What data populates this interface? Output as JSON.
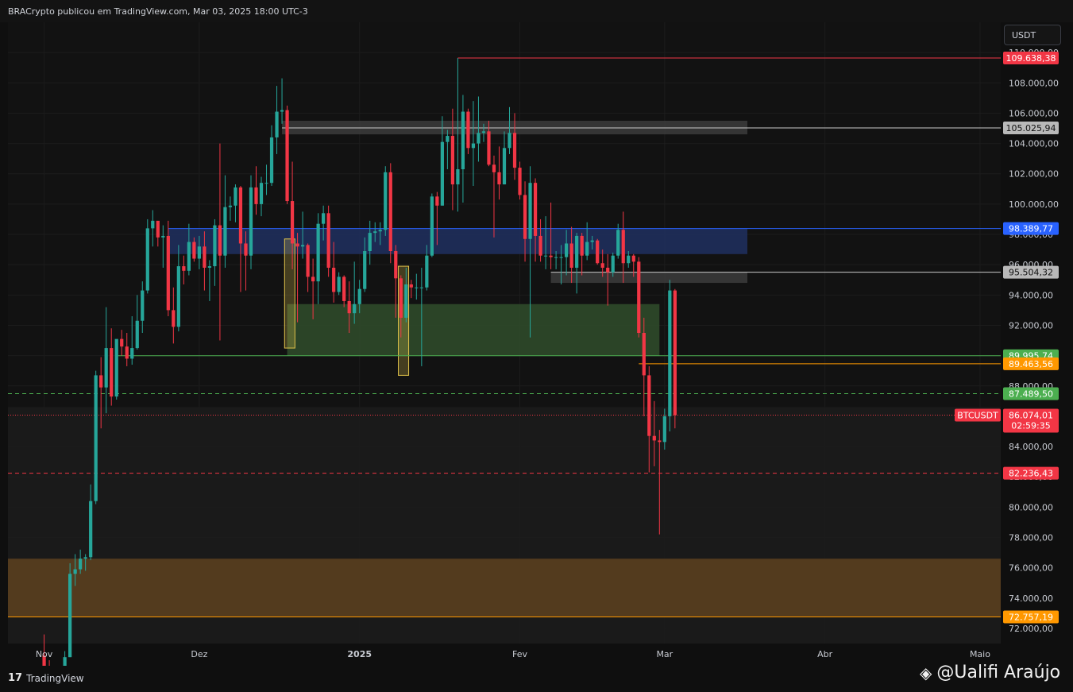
{
  "header": {
    "publish_line": "BRACrypto publicou em TradingView.com, Mar 03, 2025 18:00 UTC-3"
  },
  "currency_selector": "USDT",
  "footer": {
    "brand": "TradingView",
    "brand_logo": "tradingview-logo-icon",
    "watermark": "@Ualifi Araújo",
    "watermark_icon": "binance-logo-icon"
  },
  "chart_data": {
    "type": "candlestick",
    "symbol": "BTCUSDT",
    "quote": "USDT",
    "y_axis": {
      "side": "right",
      "ticks": [
        72000,
        74000,
        76000,
        78000,
        80000,
        82000,
        84000,
        86000,
        88000,
        90000,
        92000,
        94000,
        96000,
        98000,
        100000,
        102000,
        104000,
        106000,
        108000,
        110000
      ],
      "tick_labels": [
        "72.000,00",
        "74.000,00",
        "76.000,00",
        "78.000,00",
        "80.000,00",
        "82.000,00",
        "84.000,00",
        "86.000,00",
        "88.000,00",
        "90.000,00",
        "92.000,00",
        "94.000,00",
        "96.000,00",
        "98.000,00",
        "100.000,00",
        "102.000,00",
        "104.000,00",
        "106.000,00",
        "108.000,00",
        "110.000,00"
      ],
      "range": [
        71000,
        112000
      ]
    },
    "x_axis": {
      "range": [
        "2024-10-25",
        "2025-05-05"
      ],
      "ticks": [
        {
          "date": "2024-11-01",
          "label": "Nov"
        },
        {
          "date": "2024-12-01",
          "label": "Dez"
        },
        {
          "date": "2025-01-01",
          "label": "2025"
        },
        {
          "date": "2025-02-01",
          "label": "Fev"
        },
        {
          "date": "2025-03-01",
          "label": "Mar"
        },
        {
          "date": "2025-04-01",
          "label": "Abr"
        },
        {
          "date": "2025-05-01",
          "label": "Maio"
        }
      ]
    },
    "current_price": {
      "label": "BTCUSDT",
      "value_label": "86.074,01",
      "value": 86074.01,
      "countdown": "02:59:35"
    },
    "levels": [
      {
        "value": 109638.38,
        "label": "109.638,38",
        "color": "#f23645",
        "style": "solid",
        "start": "2025-01-20"
      },
      {
        "value": 105025.94,
        "label": "105.025,94",
        "color": "#c9c9c9",
        "style": "solid",
        "start": "2024-12-17"
      },
      {
        "value": 98389.77,
        "label": "98.389,77",
        "color": "#2962ff",
        "style": "solid",
        "start": "2024-11-25"
      },
      {
        "value": 95504.32,
        "label": "95.504,32",
        "color": "#c9c9c9",
        "style": "solid",
        "start": "2025-02-07"
      },
      {
        "value": 89995.74,
        "label": "89.995,74",
        "color": "#4caf50",
        "style": "solid",
        "start": "2024-11-15"
      },
      {
        "value": 89463.56,
        "label": "89.463,56",
        "color": "#ff9800",
        "style": "solid",
        "start": "2025-02-24"
      },
      {
        "value": 87489.5,
        "label": "87.489,50",
        "color": "#4caf50",
        "style": "dashed",
        "start": "2024-10-25"
      },
      {
        "value": 82236.43,
        "label": "82.236,43",
        "color": "#f23645",
        "style": "dashed",
        "start": "2024-10-25"
      },
      {
        "value": 72757.19,
        "label": "72.757,19",
        "color": "#ff9800",
        "style": "solid",
        "start": "2024-10-25"
      }
    ],
    "zones": [
      {
        "from": "2024-10-25",
        "to": "2025-05-05",
        "low": 72757.19,
        "high": 76600,
        "color": "#5a3f1f"
      },
      {
        "from": "2024-11-25",
        "to": "2025-03-17",
        "low": 96700,
        "high": 98389.77,
        "color": "#1f2f5c"
      },
      {
        "from": "2024-12-17",
        "to": "2025-03-17",
        "low": 104600,
        "high": 105500,
        "color": "#3a3a3a"
      },
      {
        "from": "2025-02-07",
        "to": "2025-03-17",
        "low": 94800,
        "high": 95504.32,
        "color": "#3a3a3a"
      },
      {
        "from": "2024-12-18",
        "to": "2025-02-28",
        "low": 89995.74,
        "high": 93400,
        "color": "#2f4a2a"
      }
    ],
    "candles": [
      {
        "d": "2024-11-01",
        "o": 70200,
        "h": 71600,
        "l": 69000,
        "c": 69500
      },
      {
        "d": "2024-11-02",
        "o": 69500,
        "h": 69900,
        "l": 68700,
        "c": 69300
      },
      {
        "d": "2024-11-04",
        "o": 68600,
        "h": 69000,
        "l": 66800,
        "c": 67800
      },
      {
        "d": "2024-11-05",
        "o": 67800,
        "h": 70500,
        "l": 67500,
        "c": 70100
      },
      {
        "d": "2024-11-06",
        "o": 70100,
        "h": 76300,
        "l": 70100,
        "c": 75600
      },
      {
        "d": "2024-11-07",
        "o": 75600,
        "h": 76900,
        "l": 74800,
        "c": 75900
      },
      {
        "d": "2024-11-08",
        "o": 75900,
        "h": 77200,
        "l": 75600,
        "c": 76600
      },
      {
        "d": "2024-11-09",
        "o": 76600,
        "h": 76900,
        "l": 75800,
        "c": 76700
      },
      {
        "d": "2024-11-10",
        "o": 76700,
        "h": 81500,
        "l": 76500,
        "c": 80400
      },
      {
        "d": "2024-11-11",
        "o": 80400,
        "h": 89000,
        "l": 80200,
        "c": 88700
      },
      {
        "d": "2024-11-12",
        "o": 88700,
        "h": 89900,
        "l": 85200,
        "c": 87900
      },
      {
        "d": "2024-11-13",
        "o": 87900,
        "h": 93200,
        "l": 86200,
        "c": 90500
      },
      {
        "d": "2024-11-14",
        "o": 90500,
        "h": 91800,
        "l": 86700,
        "c": 87300
      },
      {
        "d": "2024-11-15",
        "o": 87300,
        "h": 91000,
        "l": 87100,
        "c": 91100
      },
      {
        "d": "2024-11-16",
        "o": 91100,
        "h": 91700,
        "l": 90000,
        "c": 90600
      },
      {
        "d": "2024-11-17",
        "o": 90600,
        "h": 91500,
        "l": 89300,
        "c": 89800
      },
      {
        "d": "2024-11-18",
        "o": 89800,
        "h": 92600,
        "l": 89400,
        "c": 90500
      },
      {
        "d": "2024-11-19",
        "o": 90500,
        "h": 94000,
        "l": 90400,
        "c": 92300
      },
      {
        "d": "2024-11-20",
        "o": 92300,
        "h": 94900,
        "l": 91500,
        "c": 94300
      },
      {
        "d": "2024-11-21",
        "o": 94300,
        "h": 99000,
        "l": 94100,
        "c": 98400
      },
      {
        "d": "2024-11-22",
        "o": 98400,
        "h": 99600,
        "l": 97200,
        "c": 98900
      },
      {
        "d": "2024-11-23",
        "o": 98900,
        "h": 98700,
        "l": 97200,
        "c": 97800
      },
      {
        "d": "2024-11-24",
        "o": 97800,
        "h": 98600,
        "l": 95800,
        "c": 97900
      },
      {
        "d": "2024-11-25",
        "o": 97900,
        "h": 98900,
        "l": 92600,
        "c": 93000
      },
      {
        "d": "2024-11-26",
        "o": 93000,
        "h": 94500,
        "l": 90800,
        "c": 91900
      },
      {
        "d": "2024-11-27",
        "o": 91900,
        "h": 97300,
        "l": 91600,
        "c": 95900
      },
      {
        "d": "2024-11-28",
        "o": 95900,
        "h": 96600,
        "l": 94700,
        "c": 95600
      },
      {
        "d": "2024-11-29",
        "o": 95600,
        "h": 98700,
        "l": 95300,
        "c": 97500
      },
      {
        "d": "2024-11-30",
        "o": 97500,
        "h": 97800,
        "l": 96200,
        "c": 96400
      },
      {
        "d": "2024-12-01",
        "o": 96400,
        "h": 97900,
        "l": 95700,
        "c": 97200
      },
      {
        "d": "2024-12-02",
        "o": 97200,
        "h": 98200,
        "l": 94300,
        "c": 95800
      },
      {
        "d": "2024-12-03",
        "o": 95800,
        "h": 96300,
        "l": 93600,
        "c": 95900
      },
      {
        "d": "2024-12-04",
        "o": 95900,
        "h": 99000,
        "l": 94600,
        "c": 98600
      },
      {
        "d": "2024-12-05",
        "o": 98600,
        "h": 104000,
        "l": 91000,
        "c": 96600
      },
      {
        "d": "2024-12-06",
        "o": 96600,
        "h": 101900,
        "l": 95800,
        "c": 99800
      },
      {
        "d": "2024-12-07",
        "o": 99800,
        "h": 100500,
        "l": 98900,
        "c": 99900
      },
      {
        "d": "2024-12-08",
        "o": 99900,
        "h": 101300,
        "l": 98800,
        "c": 101100
      },
      {
        "d": "2024-12-09",
        "o": 101100,
        "h": 101200,
        "l": 94200,
        "c": 97400
      },
      {
        "d": "2024-12-10",
        "o": 97400,
        "h": 98200,
        "l": 94300,
        "c": 96600
      },
      {
        "d": "2024-12-11",
        "o": 96600,
        "h": 101900,
        "l": 95700,
        "c": 101100
      },
      {
        "d": "2024-12-12",
        "o": 101100,
        "h": 102500,
        "l": 99300,
        "c": 100000
      },
      {
        "d": "2024-12-13",
        "o": 100000,
        "h": 101800,
        "l": 99200,
        "c": 101400
      },
      {
        "d": "2024-12-14",
        "o": 101400,
        "h": 102600,
        "l": 100600,
        "c": 101400
      },
      {
        "d": "2024-12-15",
        "o": 101400,
        "h": 105200,
        "l": 101200,
        "c": 104400
      },
      {
        "d": "2024-12-16",
        "o": 104400,
        "h": 107800,
        "l": 103300,
        "c": 106100
      },
      {
        "d": "2024-12-17",
        "o": 106100,
        "h": 108300,
        "l": 105300,
        "c": 106200
      },
      {
        "d": "2024-12-18",
        "o": 106200,
        "h": 106500,
        "l": 100000,
        "c": 100200
      },
      {
        "d": "2024-12-19",
        "o": 100200,
        "h": 102800,
        "l": 95700,
        "c": 97400
      },
      {
        "d": "2024-12-20",
        "o": 97400,
        "h": 98100,
        "l": 92200,
        "c": 97200
      },
      {
        "d": "2024-12-21",
        "o": 97200,
        "h": 99500,
        "l": 96400,
        "c": 97300
      },
      {
        "d": "2024-12-22",
        "o": 97300,
        "h": 97400,
        "l": 94200,
        "c": 95200
      },
      {
        "d": "2024-12-23",
        "o": 95200,
        "h": 96400,
        "l": 92400,
        "c": 94900
      },
      {
        "d": "2024-12-24",
        "o": 94900,
        "h": 99400,
        "l": 93400,
        "c": 98700
      },
      {
        "d": "2024-12-25",
        "o": 98700,
        "h": 99900,
        "l": 97600,
        "c": 99400
      },
      {
        "d": "2024-12-26",
        "o": 99400,
        "h": 99900,
        "l": 95200,
        "c": 95800
      },
      {
        "d": "2024-12-27",
        "o": 95800,
        "h": 97500,
        "l": 93500,
        "c": 94200
      },
      {
        "d": "2024-12-28",
        "o": 94200,
        "h": 95500,
        "l": 94000,
        "c": 95200
      },
      {
        "d": "2024-12-29",
        "o": 95200,
        "h": 95300,
        "l": 93200,
        "c": 93600
      },
      {
        "d": "2024-12-30",
        "o": 93600,
        "h": 94900,
        "l": 91500,
        "c": 92800
      },
      {
        "d": "2024-12-31",
        "o": 92800,
        "h": 96200,
        "l": 92100,
        "c": 93400
      },
      {
        "d": "2025-01-01",
        "o": 93400,
        "h": 95000,
        "l": 92800,
        "c": 94400
      },
      {
        "d": "2025-01-02",
        "o": 94400,
        "h": 97800,
        "l": 94200,
        "c": 96900
      },
      {
        "d": "2025-01-03",
        "o": 96900,
        "h": 98900,
        "l": 96000,
        "c": 98100
      },
      {
        "d": "2025-01-04",
        "o": 98100,
        "h": 98800,
        "l": 97500,
        "c": 98200
      },
      {
        "d": "2025-01-05",
        "o": 98200,
        "h": 98800,
        "l": 97300,
        "c": 98300
      },
      {
        "d": "2025-01-06",
        "o": 98300,
        "h": 102500,
        "l": 97900,
        "c": 102100
      },
      {
        "d": "2025-01-07",
        "o": 102100,
        "h": 102700,
        "l": 96100,
        "c": 96900
      },
      {
        "d": "2025-01-08",
        "o": 96900,
        "h": 97300,
        "l": 92500,
        "c": 95100
      },
      {
        "d": "2025-01-09",
        "o": 95100,
        "h": 95300,
        "l": 91200,
        "c": 92500
      },
      {
        "d": "2025-01-10",
        "o": 92500,
        "h": 95800,
        "l": 92200,
        "c": 94700
      },
      {
        "d": "2025-01-11",
        "o": 94700,
        "h": 95000,
        "l": 93800,
        "c": 94500
      },
      {
        "d": "2025-01-12",
        "o": 94500,
        "h": 95400,
        "l": 93700,
        "c": 94500
      },
      {
        "d": "2025-01-13",
        "o": 94500,
        "h": 95800,
        "l": 89300,
        "c": 94500
      },
      {
        "d": "2025-01-14",
        "o": 94500,
        "h": 97300,
        "l": 94300,
        "c": 96600
      },
      {
        "d": "2025-01-15",
        "o": 96600,
        "h": 100700,
        "l": 96500,
        "c": 100500
      },
      {
        "d": "2025-01-16",
        "o": 100500,
        "h": 100800,
        "l": 97300,
        "c": 99900
      },
      {
        "d": "2025-01-17",
        "o": 99900,
        "h": 105800,
        "l": 99900,
        "c": 104100
      },
      {
        "d": "2025-01-18",
        "o": 104100,
        "h": 104900,
        "l": 102300,
        "c": 104500
      },
      {
        "d": "2025-01-19",
        "o": 104500,
        "h": 106300,
        "l": 99600,
        "c": 101300
      },
      {
        "d": "2025-01-20",
        "o": 101300,
        "h": 109638,
        "l": 99500,
        "c": 102300
      },
      {
        "d": "2025-01-21",
        "o": 102300,
        "h": 107200,
        "l": 100100,
        "c": 106100
      },
      {
        "d": "2025-01-22",
        "o": 106100,
        "h": 106300,
        "l": 103300,
        "c": 103700
      },
      {
        "d": "2025-01-23",
        "o": 103700,
        "h": 106800,
        "l": 101200,
        "c": 104000
      },
      {
        "d": "2025-01-24",
        "o": 104000,
        "h": 107100,
        "l": 102800,
        "c": 104700
      },
      {
        "d": "2025-01-25",
        "o": 104700,
        "h": 105300,
        "l": 104100,
        "c": 104800
      },
      {
        "d": "2025-01-26",
        "o": 104800,
        "h": 105500,
        "l": 102500,
        "c": 102600
      },
      {
        "d": "2025-01-27",
        "o": 102600,
        "h": 103200,
        "l": 97800,
        "c": 102100
      },
      {
        "d": "2025-01-28",
        "o": 102100,
        "h": 103800,
        "l": 100300,
        "c": 101300
      },
      {
        "d": "2025-01-29",
        "o": 101300,
        "h": 104800,
        "l": 101300,
        "c": 103700
      },
      {
        "d": "2025-01-30",
        "o": 103700,
        "h": 106400,
        "l": 103300,
        "c": 104700
      },
      {
        "d": "2025-01-31",
        "o": 104700,
        "h": 106000,
        "l": 101600,
        "c": 102400
      },
      {
        "d": "2025-02-01",
        "o": 102400,
        "h": 102800,
        "l": 100300,
        "c": 100600
      },
      {
        "d": "2025-02-02",
        "o": 100600,
        "h": 101500,
        "l": 96200,
        "c": 97700
      },
      {
        "d": "2025-02-03",
        "o": 97700,
        "h": 102500,
        "l": 91200,
        "c": 101400
      },
      {
        "d": "2025-02-04",
        "o": 101400,
        "h": 101700,
        "l": 96200,
        "c": 97900
      },
      {
        "d": "2025-02-05",
        "o": 97900,
        "h": 99000,
        "l": 96200,
        "c": 96600
      },
      {
        "d": "2025-02-06",
        "o": 96600,
        "h": 99200,
        "l": 95700,
        "c": 96600
      },
      {
        "d": "2025-02-07",
        "o": 96600,
        "h": 100100,
        "l": 95700,
        "c": 96500
      },
      {
        "d": "2025-02-08",
        "o": 96500,
        "h": 96900,
        "l": 95700,
        "c": 96500
      },
      {
        "d": "2025-02-09",
        "o": 96500,
        "h": 97300,
        "l": 94700,
        "c": 96500
      },
      {
        "d": "2025-02-10",
        "o": 96500,
        "h": 98300,
        "l": 95300,
        "c": 97400
      },
      {
        "d": "2025-02-11",
        "o": 97400,
        "h": 98500,
        "l": 94800,
        "c": 95800
      },
      {
        "d": "2025-02-12",
        "o": 95800,
        "h": 98100,
        "l": 94100,
        "c": 97900
      },
      {
        "d": "2025-02-13",
        "o": 97900,
        "h": 98100,
        "l": 95300,
        "c": 96600
      },
      {
        "d": "2025-02-14",
        "o": 96600,
        "h": 98800,
        "l": 96300,
        "c": 97500
      },
      {
        "d": "2025-02-15",
        "o": 97500,
        "h": 97900,
        "l": 97000,
        "c": 97600
      },
      {
        "d": "2025-02-16",
        "o": 97600,
        "h": 97700,
        "l": 96000,
        "c": 96100
      },
      {
        "d": "2025-02-17",
        "o": 96100,
        "h": 97000,
        "l": 95200,
        "c": 95800
      },
      {
        "d": "2025-02-18",
        "o": 95800,
        "h": 96700,
        "l": 93300,
        "c": 95500
      },
      {
        "d": "2025-02-19",
        "o": 95500,
        "h": 96800,
        "l": 95200,
        "c": 96600
      },
      {
        "d": "2025-02-20",
        "o": 96600,
        "h": 98700,
        "l": 96400,
        "c": 98300
      },
      {
        "d": "2025-02-21",
        "o": 98300,
        "h": 99500,
        "l": 94800,
        "c": 96100
      },
      {
        "d": "2025-02-22",
        "o": 96100,
        "h": 96900,
        "l": 95800,
        "c": 96600
      },
      {
        "d": "2025-02-23",
        "o": 96600,
        "h": 96700,
        "l": 95200,
        "c": 96200
      },
      {
        "d": "2025-02-24",
        "o": 96200,
        "h": 96500,
        "l": 91200,
        "c": 91500
      },
      {
        "d": "2025-02-25",
        "o": 91500,
        "h": 92500,
        "l": 86000,
        "c": 88700
      },
      {
        "d": "2025-02-26",
        "o": 88700,
        "h": 89300,
        "l": 82300,
        "c": 84700
      },
      {
        "d": "2025-02-27",
        "o": 84700,
        "h": 87000,
        "l": 82700,
        "c": 84400
      },
      {
        "d": "2025-02-28",
        "o": 84400,
        "h": 85100,
        "l": 78200,
        "c": 84300
      },
      {
        "d": "2025-03-01",
        "o": 84300,
        "h": 86500,
        "l": 83800,
        "c": 86000
      },
      {
        "d": "2025-03-02",
        "o": 86000,
        "h": 95000,
        "l": 85000,
        "c": 94300
      },
      {
        "d": "2025-03-03",
        "o": 94300,
        "h": 94400,
        "l": 85200,
        "c": 86074
      }
    ],
    "colors": {
      "up": "#26a69a",
      "down": "#f23645",
      "grid": "#1c1c1c"
    },
    "markers": [
      {
        "from": "2024-12-18",
        "to": "2024-12-19",
        "low": 90500,
        "high": 97700,
        "color": "#e0c34a"
      },
      {
        "from": "2025-01-09",
        "to": "2025-01-10",
        "low": 88700,
        "high": 95900,
        "color": "#e0c34a"
      }
    ]
  }
}
